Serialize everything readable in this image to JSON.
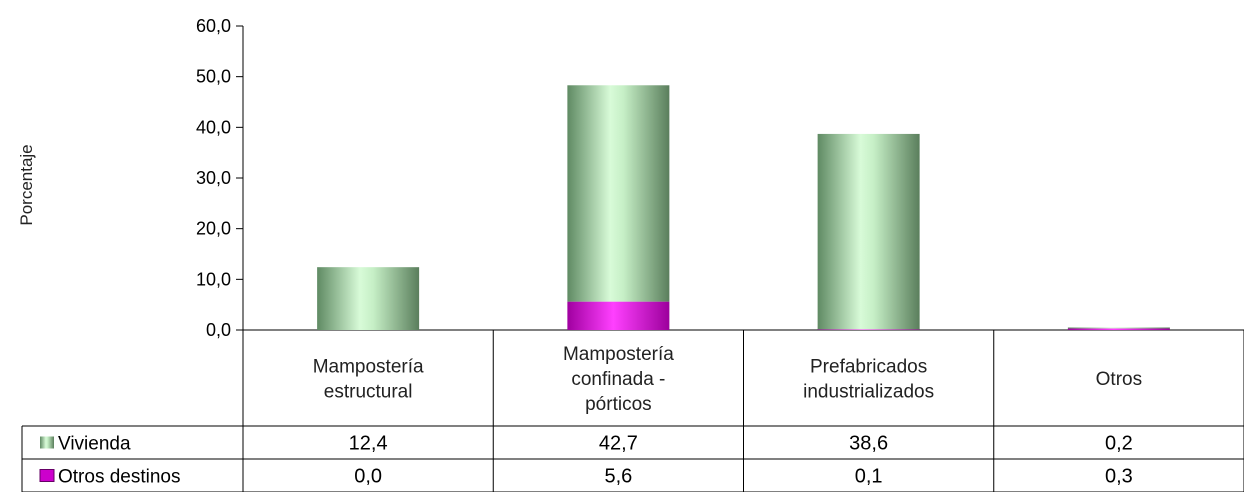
{
  "chart_data": {
    "type": "bar",
    "stacked": true,
    "ylabel": "Porcentaje",
    "ylim": [
      0,
      60
    ],
    "yticks": [
      "0,0",
      "10,0",
      "20,0",
      "30,0",
      "40,0",
      "50,0",
      "60,0"
    ],
    "categories": [
      [
        "Mampostería",
        "estructural"
      ],
      [
        "Mampostería",
        "confinada -",
        "pórticos"
      ],
      [
        "Prefabricados",
        "industrializados"
      ],
      [
        "Otros"
      ]
    ],
    "series": [
      {
        "name": "Vivienda",
        "values": [
          12.4,
          42.7,
          38.6,
          0.2
        ],
        "labels": [
          "12,4",
          "42,7",
          "38,6",
          "0,2"
        ],
        "color": "#a8d8a8"
      },
      {
        "name": "Otros destinos",
        "values": [
          0.0,
          5.6,
          0.1,
          0.3
        ],
        "labels": [
          "0,0",
          "5,6",
          "0,1",
          "0,3"
        ],
        "color": "#cc00cc"
      }
    ],
    "grid": false,
    "legend": "data-table"
  }
}
